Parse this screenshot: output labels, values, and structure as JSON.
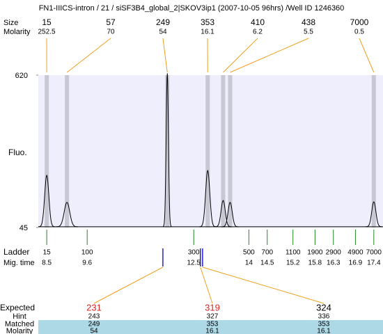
{
  "chart_data": {
    "type": "electropherogram",
    "title": "FN1-IIICS-intron / 21 / siSF3B4_global_2|SKOV3ip1 (2007-10-05 96hrs) /Well ID 1246360",
    "size_label": "Size",
    "molarity_label": "Molarity",
    "ylabel": "Fluo.",
    "ylim": [
      45,
      620
    ],
    "yticks": [
      45,
      620
    ],
    "xlim": [
      8.27,
      17.65
    ],
    "baseline": 48,
    "peaks": {
      "size": [
        15,
        57,
        249,
        353,
        410,
        438,
        7000
      ],
      "molarity": [
        252.5,
        70,
        54,
        16.1,
        6.2,
        5.5,
        0.5
      ],
      "time": [
        8.5,
        9.05,
        11.78,
        12.88,
        13.3,
        13.49,
        17.4
      ],
      "height": [
        242,
        140,
        628,
        260,
        147,
        140,
        142
      ]
    },
    "ladder_label": "Ladder",
    "mig_time_label": "Mig. time",
    "ladder": {
      "size": [
        15,
        100,
        300,
        500,
        700,
        1100,
        1900,
        2900,
        4900,
        7000
      ],
      "time": [
        8.5,
        9.6,
        12.5,
        14,
        14.5,
        15.2,
        15.8,
        16.3,
        16.9,
        17.4
      ]
    },
    "expected_label": "Expected",
    "hint_label": "Hint",
    "matched_label": "Matched",
    "matched_molarity_label": "Molarity",
    "expected": {
      "size": [
        231,
        319,
        324
      ],
      "time": [
        11.66,
        12.68,
        12.74
      ],
      "color": [
        "#dd2222",
        "#dd2222",
        "#000000"
      ],
      "hint": [
        243,
        327,
        336
      ],
      "matched": [
        249,
        353,
        353
      ],
      "molarity": [
        54,
        16.1,
        16.1
      ]
    }
  }
}
